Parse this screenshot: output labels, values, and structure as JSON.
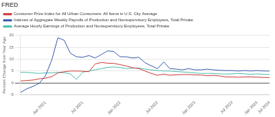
{
  "chart_data": {
    "type": "line",
    "title": "FRED",
    "y_label": "Percent Change from Year Ago",
    "categories": [
      null,
      null,
      null,
      null,
      "Jan 2021",
      null,
      null,
      null,
      null,
      null,
      "Jul 2021",
      null,
      null,
      null,
      null,
      null,
      "Jan 2022",
      null,
      null,
      null,
      null,
      null,
      "Jul 2022",
      null,
      null,
      null,
      null,
      null,
      "Jan 2023",
      null,
      null,
      null,
      null,
      null,
      "Jul 2023",
      null,
      null,
      null,
      "Jan 2024",
      null,
      "Jul 2024"
    ],
    "series": [
      {
        "name": "Consumer Price Index for All Urban Consumers: All Items in U.S. City Average",
        "color": "#cc3333",
        "values": [
          0.8,
          1.0,
          1.2,
          1.7,
          2.0,
          2.6,
          4.2,
          4.7,
          5.0,
          5.0,
          4.9,
          4.7,
          8.0,
          8.6,
          8.3,
          8.2,
          7.7,
          7.1,
          6.4,
          6.0,
          5.0,
          4.0,
          3.2,
          3.7,
          3.2,
          3.4,
          3.5,
          3.5,
          3.4,
          3.3,
          3.0,
          3.2,
          2.9,
          2.5,
          2.5,
          2.4,
          2.5,
          2.5,
          2.4,
          2.3,
          2.2
        ]
      },
      {
        "name": "Indexes of Aggregate Weekly Payrolls of Production and Nonsupervisory Employees, Total Private",
        "color": "#3355aa",
        "values": [
          -4.0,
          -2.5,
          -1.5,
          -0.2,
          3.0,
          9.5,
          19.0,
          18.0,
          12.5,
          11.0,
          10.8,
          11.5,
          10.5,
          12.0,
          13.5,
          13.2,
          11.0,
          11.0,
          10.5,
          10.8,
          8.5,
          7.2,
          6.0,
          8.8,
          6.0,
          5.8,
          5.5,
          6.0,
          5.5,
          5.5,
          5.8,
          5.5,
          5.3,
          5.2,
          5.2,
          5.0,
          5.2,
          5.0,
          5.2,
          5.0,
          5.0
        ]
      },
      {
        "name": "Average Hourly Earnings of Production and Nonsupervisory Employees, Total Private",
        "color": "#44bbaa",
        "values": [
          4.5,
          4.4,
          4.2,
          4.0,
          4.2,
          4.2,
          4.4,
          4.3,
          3.8,
          1.5,
          4.5,
          5.0,
          5.5,
          6.0,
          6.5,
          6.7,
          6.5,
          6.0,
          6.2,
          6.3,
          5.8,
          5.5,
          5.2,
          5.0,
          5.0,
          4.8,
          4.6,
          4.4,
          4.2,
          4.0,
          4.0,
          4.0,
          3.8,
          3.7,
          3.8,
          4.0,
          3.8,
          3.6,
          3.8,
          3.6,
          3.5
        ]
      }
    ],
    "ylim": [
      -5,
      20
    ],
    "yticks": [
      -5,
      0,
      5,
      10,
      15,
      20
    ],
    "grid": "y",
    "legend": "top"
  }
}
